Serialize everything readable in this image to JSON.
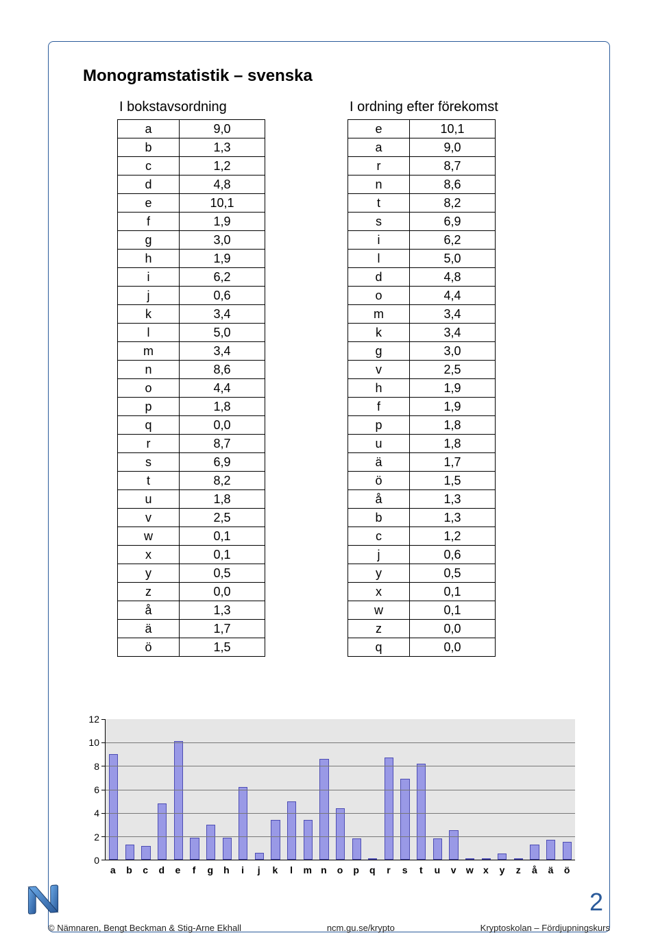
{
  "title": "Monogramstatistik – svenska",
  "table_alpha": {
    "heading": "I bokstavsordning",
    "rows": [
      [
        "a",
        "9,0"
      ],
      [
        "b",
        "1,3"
      ],
      [
        "c",
        "1,2"
      ],
      [
        "d",
        "4,8"
      ],
      [
        "e",
        "10,1"
      ],
      [
        "f",
        "1,9"
      ],
      [
        "g",
        "3,0"
      ],
      [
        "h",
        "1,9"
      ],
      [
        "i",
        "6,2"
      ],
      [
        "j",
        "0,6"
      ],
      [
        "k",
        "3,4"
      ],
      [
        "l",
        "5,0"
      ],
      [
        "m",
        "3,4"
      ],
      [
        "n",
        "8,6"
      ],
      [
        "o",
        "4,4"
      ],
      [
        "p",
        "1,8"
      ],
      [
        "q",
        "0,0"
      ],
      [
        "r",
        "8,7"
      ],
      [
        "s",
        "6,9"
      ],
      [
        "t",
        "8,2"
      ],
      [
        "u",
        "1,8"
      ],
      [
        "v",
        "2,5"
      ],
      [
        "w",
        "0,1"
      ],
      [
        "x",
        "0,1"
      ],
      [
        "y",
        "0,5"
      ],
      [
        "z",
        "0,0"
      ],
      [
        "å",
        "1,3"
      ],
      [
        "ä",
        "1,7"
      ],
      [
        "ö",
        "1,5"
      ]
    ]
  },
  "table_freq": {
    "heading": "I ordning efter förekomst",
    "rows": [
      [
        "e",
        "10,1"
      ],
      [
        "a",
        "9,0"
      ],
      [
        "r",
        "8,7"
      ],
      [
        "n",
        "8,6"
      ],
      [
        "t",
        "8,2"
      ],
      [
        "s",
        "6,9"
      ],
      [
        "i",
        "6,2"
      ],
      [
        "l",
        "5,0"
      ],
      [
        "d",
        "4,8"
      ],
      [
        "o",
        "4,4"
      ],
      [
        "m",
        "3,4"
      ],
      [
        "k",
        "3,4"
      ],
      [
        "g",
        "3,0"
      ],
      [
        "v",
        "2,5"
      ],
      [
        "h",
        "1,9"
      ],
      [
        "f",
        "1,9"
      ],
      [
        "p",
        "1,8"
      ],
      [
        "u",
        "1,8"
      ],
      [
        "ä",
        "1,7"
      ],
      [
        "ö",
        "1,5"
      ],
      [
        "å",
        "1,3"
      ],
      [
        "b",
        "1,3"
      ],
      [
        "c",
        "1,2"
      ],
      [
        "j",
        "0,6"
      ],
      [
        "y",
        "0,5"
      ],
      [
        "x",
        "0,1"
      ],
      [
        "w",
        "0,1"
      ],
      [
        "z",
        "0,0"
      ],
      [
        "q",
        "0,0"
      ]
    ]
  },
  "chart": {
    "type": "bar",
    "categories": [
      "a",
      "b",
      "c",
      "d",
      "e",
      "f",
      "g",
      "h",
      "i",
      "j",
      "k",
      "l",
      "m",
      "n",
      "o",
      "p",
      "q",
      "r",
      "s",
      "t",
      "u",
      "v",
      "w",
      "x",
      "y",
      "z",
      "å",
      "ä",
      "ö"
    ],
    "values": [
      9.0,
      1.3,
      1.2,
      4.8,
      10.1,
      1.9,
      3.0,
      1.9,
      6.2,
      0.6,
      3.4,
      5.0,
      3.4,
      8.6,
      4.4,
      1.8,
      0.0,
      8.7,
      6.9,
      8.2,
      1.8,
      2.5,
      0.1,
      0.1,
      0.5,
      0.0,
      1.3,
      1.7,
      1.5
    ],
    "ylim": [
      0,
      12
    ],
    "ytick_step": 2,
    "bar_fill": "#9999e6",
    "bar_border": "#4d4db3",
    "plot_bg": "#e6e6e6",
    "grid_color": "#777777",
    "axis_color": "#000000",
    "label_fontsize": 14
  },
  "page_number": "2",
  "footer": {
    "left": "© Nämnaren, Bengt Beckman & Stig-Arne Ekhall",
    "center": "ncm.gu.se/krypto",
    "right": "Kryptoskolan – Fördjupningskurs"
  }
}
